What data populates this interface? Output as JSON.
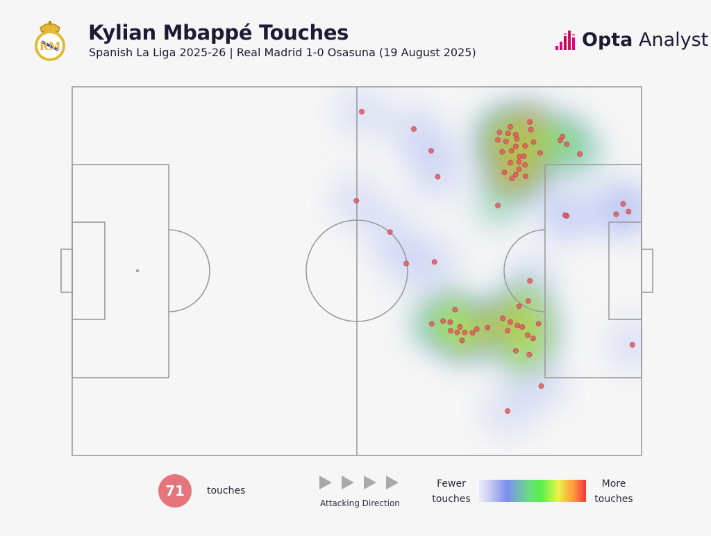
{
  "header": {
    "title": "Kylian Mbappé Touches",
    "subtitle": "Spanish La Liga 2025-26 | Real Madrid 1-0 Osasuna (19 August 2025)",
    "brand_bold": "Opta",
    "brand_light": " Analyst",
    "crest_icon": "real-madrid-crest-icon",
    "brand_icon": "opta-bars-icon"
  },
  "footer": {
    "touch_count": "71",
    "touch_label": "touches",
    "direction_label": "Attacking Direction",
    "legend_low": "Fewer touches",
    "legend_high": "More touches"
  },
  "colors": {
    "dot": "#e05a60",
    "pitch_line": "#9a9a9a",
    "pitch_bg": "#f6f6f6",
    "accent": "#e4757a",
    "brand": "#c2185b"
  },
  "chart_data": {
    "type": "scatter",
    "title": "Kylian Mbappé Touches",
    "x_range": [
      0,
      105
    ],
    "y_range": [
      0,
      68
    ],
    "attacking_direction": "left-to-right",
    "touches": [
      [
        53.4,
        63.4
      ],
      [
        66.2,
        56.2
      ],
      [
        63.0,
        60.2
      ],
      [
        80.4,
        59.4
      ],
      [
        81.8,
        59.2
      ],
      [
        86.3,
        55.8
      ],
      [
        78.8,
        59.6
      ],
      [
        78.5,
        58.2
      ],
      [
        84.6,
        60.1
      ],
      [
        80.8,
        60.6
      ],
      [
        83.5,
        57.1
      ],
      [
        85.1,
        57.8
      ],
      [
        80.0,
        57.9
      ],
      [
        81.0,
        56.2
      ],
      [
        83.5,
        53.6
      ],
      [
        82.5,
        55.1
      ],
      [
        81.8,
        57.0
      ],
      [
        82.0,
        58.4
      ],
      [
        80.8,
        54.0
      ],
      [
        82.4,
        54.1
      ],
      [
        82.4,
        52.8
      ],
      [
        81.8,
        51.8
      ],
      [
        83.6,
        51.5
      ],
      [
        91.2,
        57.4
      ],
      [
        90.0,
        58.1
      ],
      [
        90.4,
        58.8
      ],
      [
        84.4,
        61.5
      ],
      [
        93.6,
        55.6
      ],
      [
        83.3,
        55.2
      ],
      [
        79.3,
        56.0
      ],
      [
        67.4,
        51.4
      ],
      [
        79.7,
        52.2
      ],
      [
        81.1,
        51.1
      ],
      [
        78.5,
        46.1
      ],
      [
        101.6,
        46.4
      ],
      [
        102.6,
        45.0
      ],
      [
        100.3,
        44.5
      ],
      [
        91.2,
        44.2
      ],
      [
        90.9,
        44.3
      ],
      [
        58.6,
        41.2
      ],
      [
        52.4,
        47.0
      ],
      [
        61.6,
        35.4
      ],
      [
        66.8,
        35.7
      ],
      [
        80.8,
        24.6
      ],
      [
        69.7,
        24.6
      ],
      [
        71.0,
        22.7
      ],
      [
        72.4,
        22.7
      ],
      [
        84.4,
        32.2
      ],
      [
        82.4,
        27.5
      ],
      [
        84.1,
        28.5
      ],
      [
        70.6,
        26.9
      ],
      [
        79.4,
        25.3
      ],
      [
        80.3,
        23.0
      ],
      [
        83.0,
        23.7
      ],
      [
        68.4,
        24.8
      ],
      [
        66.3,
        24.3
      ],
      [
        69.8,
        23.0
      ],
      [
        71.5,
        23.7
      ],
      [
        81.8,
        19.3
      ],
      [
        76.6,
        23.6
      ],
      [
        74.6,
        23.3
      ],
      [
        84.0,
        22.2
      ],
      [
        85.0,
        21.6
      ],
      [
        86.0,
        24.3
      ],
      [
        82.1,
        24.0
      ],
      [
        73.8,
        22.6
      ],
      [
        71.9,
        21.2
      ],
      [
        84.3,
        18.6
      ],
      [
        86.5,
        12.8
      ],
      [
        80.3,
        8.2
      ],
      [
        103.3,
        20.4
      ]
    ]
  }
}
